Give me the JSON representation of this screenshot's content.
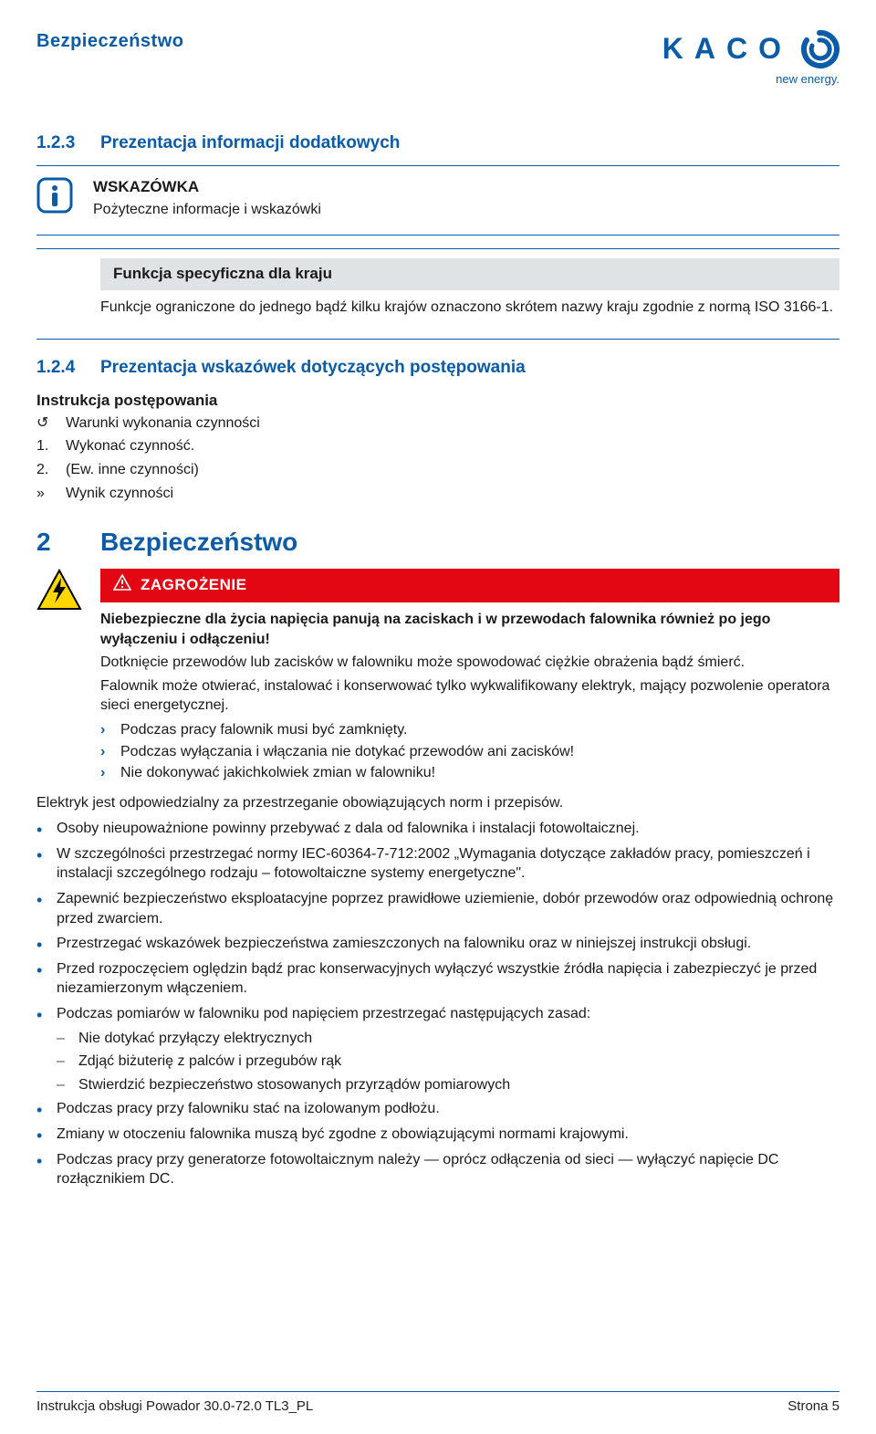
{
  "brand": {
    "name": "KACO",
    "subtitle": "new energy.",
    "color_primary": "#0a5ca8",
    "color_danger": "#e30613",
    "background": "#ffffff",
    "grey_box_bg": "#e0e3e5"
  },
  "header": {
    "page_title": "Bezpieczeństwo"
  },
  "section_123": {
    "number": "1.2.3",
    "title": "Prezentacja informacji dodatkowych",
    "info_title": "WSKAZÓWKA",
    "info_desc": "Pożyteczne informacje i wskazówki",
    "func_title": "Funkcja specyficzna dla kraju",
    "func_desc": "Funkcje ograniczone do jednego bądź kilku krajów oznaczono skrótem nazwy kraju zgodnie z normą ISO 3166-1."
  },
  "section_124": {
    "number": "1.2.4",
    "title": "Prezentacja wskazówek dotyczących postępowania",
    "instr_title": "Instrukcja postępowania",
    "rows": [
      {
        "marker": "↺",
        "text": "Warunki wykonania czynności"
      },
      {
        "marker": "1.",
        "text": "Wykonać czynność."
      },
      {
        "marker": "2.",
        "text": "(Ew. inne czynności)"
      },
      {
        "marker": "»",
        "text": "Wynik czynności"
      }
    ]
  },
  "section_2": {
    "number": "2",
    "title": "Bezpieczeństwo",
    "danger_label": "ZAGROŻENIE",
    "danger_headline": "Niebezpieczne dla życia napięcia panują na zaciskach i w przewodach falownika również po jego wyłączeniu i odłączeniu!",
    "danger_p1": "Dotknięcie przewodów lub zacisków w falowniku może spowodować ciężkie obrażenia bądź śmierć.",
    "danger_p2": "Falownik może otwierać, instalować i konserwować tylko wykwalifikowany elektryk, mający pozwolenie operatora sieci energetycznej.",
    "danger_bullets": [
      "Podczas pracy falownik musi być zamknięty.",
      "Podczas wyłączania i włączania nie dotykać przewodów ani zacisków!",
      "Nie dokonywać jakichkolwiek zmian w falowniku!"
    ],
    "body_intro": "Elektryk jest odpowiedzialny za przestrzeganie obowiązujących norm i przepisów.",
    "body_items": [
      {
        "text": "Osoby nieupoważnione powinny przebywać z dala od falownika i instalacji fotowoltaicznej."
      },
      {
        "text": "W szczególności przestrzegać normy IEC-60364-7-712:2002 „Wymagania dotyczące zakładów pracy, pomieszczeń i instalacji szczególnego rodzaju – fotowoltaiczne systemy energetyczne\"."
      },
      {
        "text": "Zapewnić bezpieczeństwo eksploatacyjne poprzez prawidłowe uziemienie, dobór przewodów oraz odpowiednią ochronę przed zwarciem."
      },
      {
        "text": "Przestrzegać wskazówek bezpieczeństwa zamieszczonych na falowniku oraz w niniejszej instrukcji obsługi."
      },
      {
        "text": "Przed rozpoczęciem oględzin bądź prac konserwacyjnych wyłączyć wszystkie źródła napięcia i zabezpieczyć je przed niezamierzonym włączeniem."
      },
      {
        "text": "Podczas pomiarów w falowniku pod napięciem przestrzegać następujących zasad:",
        "sub": [
          "Nie dotykać przyłączy elektrycznych",
          "Zdjąć biżuterię z palców i przegubów rąk",
          "Stwierdzić bezpieczeństwo stosowanych przyrządów pomiarowych"
        ]
      },
      {
        "text": "Podczas pracy przy falowniku stać na izolowanym podłożu."
      },
      {
        "text": "Zmiany w otoczeniu falownika muszą być zgodne z obowiązującymi normami krajowymi."
      },
      {
        "text": "Podczas pracy przy generatorze fotowoltaicznym należy — oprócz odłączenia od sieci — wyłączyć napięcie DC rozłącznikiem DC."
      }
    ]
  },
  "footer": {
    "left": "Instrukcja obsługi Powador 30.0-72.0 TL3_PL",
    "right": "Strona 5"
  }
}
